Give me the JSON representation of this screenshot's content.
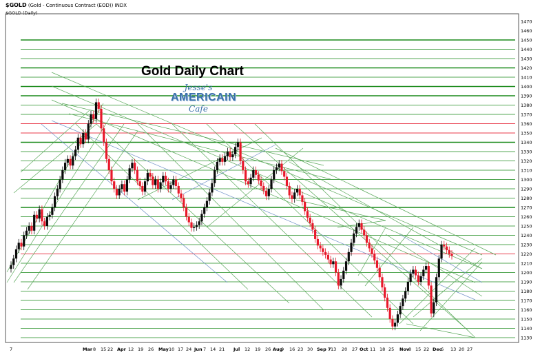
{
  "header": {
    "symbol": "$GOLD",
    "description": "(Gold - Continuous Contract (EOD)) INDX",
    "sub": "$GOLD (Daily)"
  },
  "overlay": {
    "title": "Gold Daily Chart",
    "logo_line1": "Jesse's",
    "logo_line2": "AMERICAIN",
    "logo_line3": "Cafe"
  },
  "colors": {
    "up_bar": "#0a0a0a",
    "down_bar": "#e8182a",
    "green_line": "#1a8a1a",
    "red_line": "#e83a4a",
    "diag_green": "#5aa85a",
    "diag_blue": "#7090c8",
    "axis_text": "#000000"
  },
  "chart_data": {
    "type": "candlestick",
    "title": "Gold Daily Chart",
    "symbol": "$GOLD",
    "ylim": [
      1125,
      1480
    ],
    "y_ticks": [
      1130,
      1140,
      1150,
      1160,
      1170,
      1180,
      1190,
      1200,
      1210,
      1220,
      1230,
      1240,
      1250,
      1260,
      1270,
      1280,
      1290,
      1300,
      1310,
      1320,
      1330,
      1340,
      1350,
      1360,
      1370,
      1380,
      1390,
      1400,
      1410,
      1420,
      1430,
      1440,
      1450,
      1460,
      1470
    ],
    "x_ticks": [
      "7",
      "Mar",
      "8",
      "15",
      "22",
      "Apr",
      "12",
      "19",
      "26",
      "May",
      "10",
      "17",
      "24",
      "Jun",
      "7",
      "14",
      "21",
      "Jul",
      "12",
      "19",
      "26",
      "Aug",
      "9",
      "16",
      "23",
      "30",
      "Sep 7",
      "13",
      "20",
      "27",
      "Oct",
      "11",
      "18",
      "25",
      "Nov",
      "8",
      "15",
      "22",
      "Dec",
      "6",
      "13",
      "20",
      "27"
    ],
    "horizontal_levels": {
      "red": [
        1220,
        1350,
        1360
      ],
      "bold_green": [
        1270,
        1340,
        1390,
        1400,
        1420,
        1450
      ],
      "green": [
        1130,
        1140,
        1150,
        1160,
        1170,
        1180,
        1190,
        1200,
        1210,
        1230,
        1240,
        1250,
        1260,
        1280,
        1290,
        1300,
        1310,
        1320,
        1330,
        1370,
        1380,
        1410,
        1430,
        1440
      ]
    },
    "closes": [
      1208,
      1215,
      1225,
      1232,
      1228,
      1240,
      1245,
      1250,
      1245,
      1262,
      1258,
      1268,
      1255,
      1250,
      1260,
      1262,
      1270,
      1282,
      1290,
      1300,
      1310,
      1318,
      1322,
      1315,
      1325,
      1332,
      1345,
      1338,
      1350,
      1343,
      1360,
      1370,
      1365,
      1383,
      1376,
      1355,
      1340,
      1322,
      1310,
      1298,
      1290,
      1283,
      1290,
      1295,
      1287,
      1300,
      1312,
      1318,
      1310,
      1298,
      1293,
      1287,
      1298,
      1307,
      1303,
      1294,
      1300,
      1290,
      1297,
      1304,
      1298,
      1290,
      1294,
      1300,
      1293,
      1285,
      1280,
      1270,
      1260,
      1254,
      1248,
      1249,
      1251,
      1255,
      1263,
      1270,
      1277,
      1286,
      1296,
      1310,
      1319,
      1323,
      1319,
      1325,
      1330,
      1324,
      1327,
      1335,
      1340,
      1320,
      1310,
      1298,
      1295,
      1302,
      1310,
      1305,
      1299,
      1293,
      1288,
      1282,
      1290,
      1300,
      1310,
      1313,
      1317,
      1309,
      1303,
      1293,
      1283,
      1279,
      1286,
      1290,
      1283,
      1276,
      1266,
      1259,
      1253,
      1246,
      1236,
      1229,
      1226,
      1222,
      1219,
      1214,
      1209,
      1212,
      1200,
      1186,
      1193,
      1202,
      1212,
      1222,
      1232,
      1242,
      1249,
      1253,
      1246,
      1240,
      1232,
      1226,
      1220,
      1213,
      1205,
      1195,
      1184,
      1173,
      1162,
      1150,
      1142,
      1146,
      1155,
      1164,
      1172,
      1180,
      1190,
      1199,
      1203,
      1197,
      1190,
      1196,
      1203,
      1207,
      1186,
      1156,
      1168,
      1195,
      1215,
      1230,
      1228,
      1224,
      1220,
      1218
    ]
  }
}
